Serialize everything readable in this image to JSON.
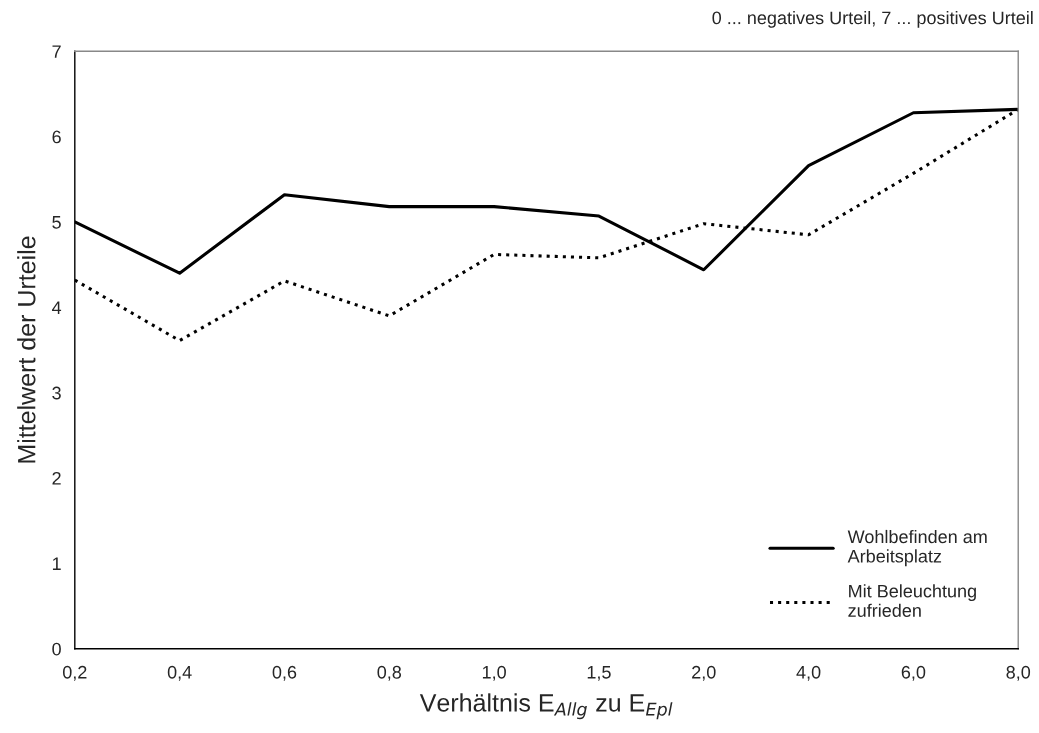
{
  "chart_data": {
    "type": "line",
    "xlabel": "Verhältnis E$_{Allg}$ zu E$_{Epl}$",
    "ylabel": "Mittelwert der Urteile",
    "annotations": [
      "0 ... negatives Urteil, 7 ... positives Urteil"
    ],
    "categories": [
      "0,2",
      "0,4",
      "0,6",
      "0,8",
      "1,0",
      "1,5",
      "2,0",
      "4,0",
      "6,0",
      "8,0"
    ],
    "series": [
      {
        "name": "Wohlbefinden am\nArbeitsplatz",
        "color": "#000000",
        "line_style": "solid",
        "values": [
          5.0,
          4.4,
          5.32,
          5.18,
          5.18,
          5.07,
          4.44,
          5.66,
          6.28,
          6.32
        ]
      },
      {
        "name": "Mit Beleuchtung\nzufrieden",
        "color": "#000000",
        "line_style": "dotted",
        "values": [
          4.32,
          3.61,
          4.31,
          3.9,
          4.62,
          4.58,
          4.98,
          4.85,
          5.57,
          6.32
        ]
      }
    ],
    "ylim": [
      0,
      7
    ],
    "yticks": [
      0,
      1,
      2,
      3,
      4,
      5,
      6,
      7
    ],
    "grid": false,
    "legend": "lower right",
    "marker": "none"
  }
}
